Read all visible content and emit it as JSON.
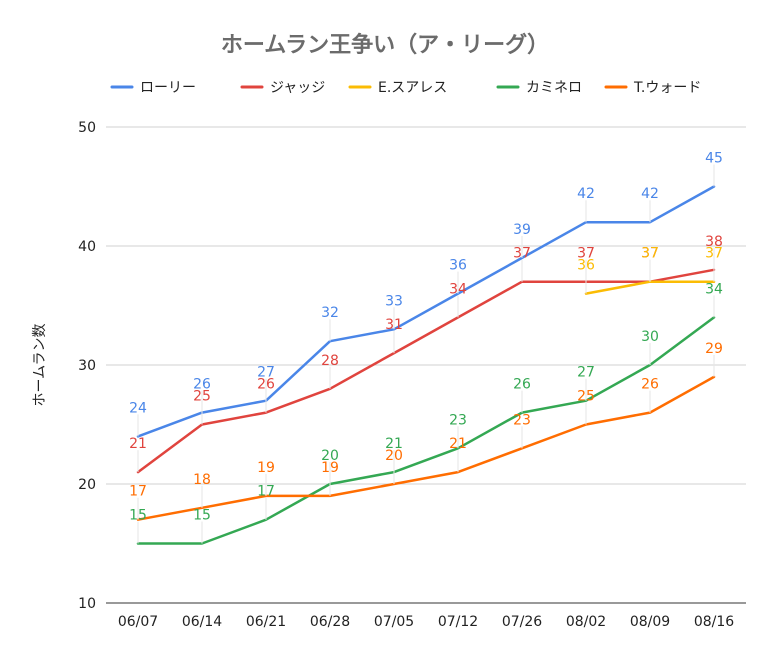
{
  "chart_data": {
    "type": "line",
    "title": "ホームラン王争い（ア・リーグ）",
    "xlabel": "",
    "ylabel": "ホームラン数",
    "categories": [
      "06/07",
      "06/14",
      "06/21",
      "06/28",
      "07/05",
      "07/12",
      "07/26",
      "08/02",
      "08/09",
      "08/16"
    ],
    "ylim": [
      10,
      50
    ],
    "yticks": [
      10,
      20,
      30,
      40,
      50
    ],
    "grid": true,
    "legend_position": "top",
    "series": [
      {
        "name": "ローリー",
        "color": "#4a86e8",
        "values": [
          24,
          26,
          27,
          32,
          33,
          36,
          39,
          42,
          42,
          45
        ]
      },
      {
        "name": "ジャッジ",
        "color": "#e0443e",
        "values": [
          21,
          25,
          26,
          28,
          31,
          34,
          37,
          37,
          37,
          38
        ]
      },
      {
        "name": "E.スアレス",
        "color": "#fbbc04",
        "values": [
          null,
          null,
          null,
          null,
          null,
          null,
          null,
          36,
          37,
          37
        ]
      },
      {
        "name": "カミネロ",
        "color": "#34a853",
        "values": [
          15,
          15,
          17,
          20,
          21,
          23,
          26,
          27,
          30,
          34
        ]
      },
      {
        "name": "T.ウォード",
        "color": "#ff6d01",
        "values": [
          17,
          18,
          19,
          19,
          20,
          21,
          23,
          25,
          26,
          29
        ]
      }
    ]
  }
}
